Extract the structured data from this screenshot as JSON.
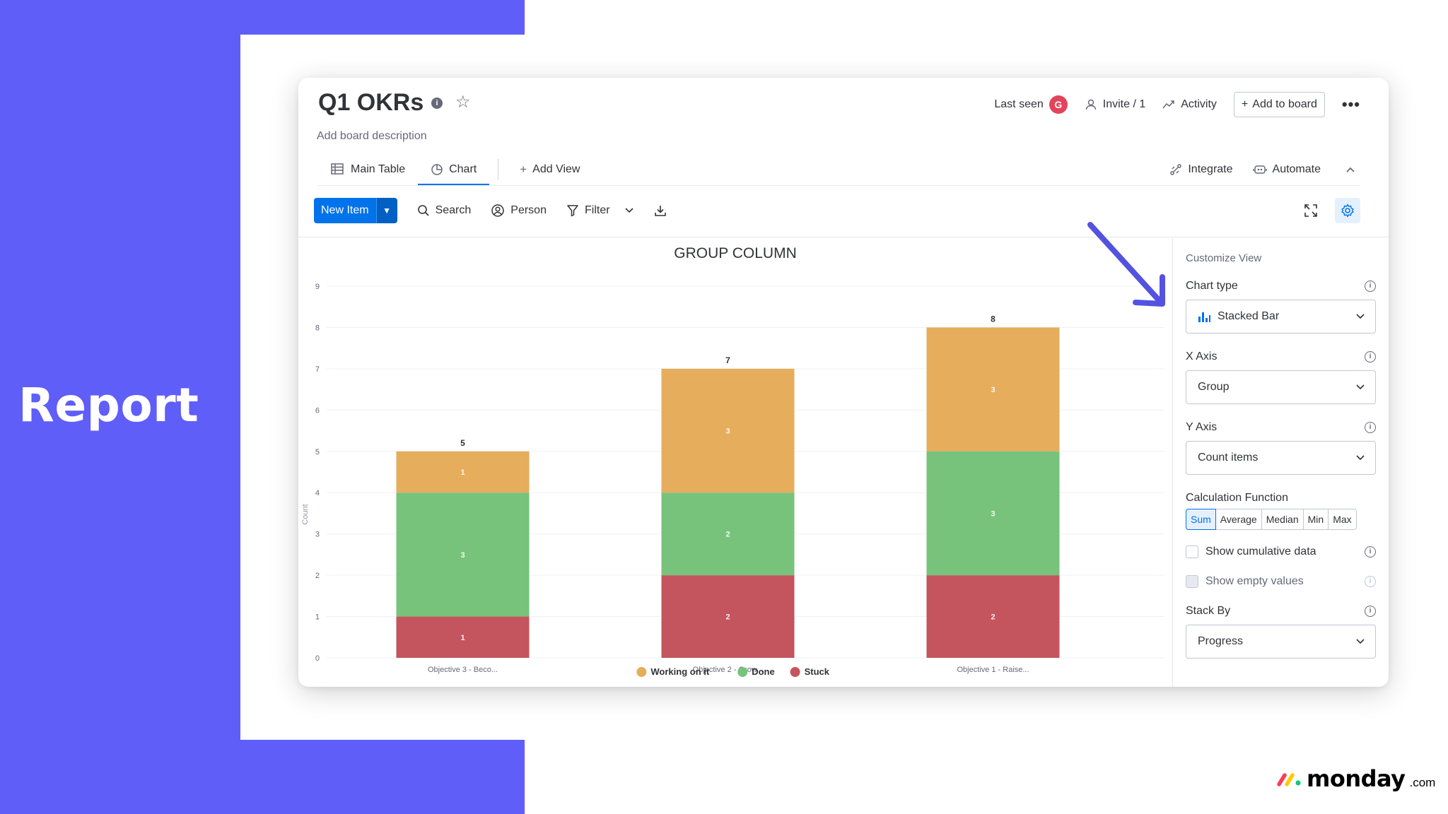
{
  "slide": {
    "label": "Report",
    "brand": "monday",
    "brand_suffix": ".com",
    "brand_colors": [
      "#ff3d57",
      "#ffcb00",
      "#00ca72"
    ]
  },
  "board": {
    "title": "Q1 OKRs",
    "description": "Add board description",
    "last_seen_label": "Last seen",
    "avatar_initial": "G",
    "invite_label": "Invite / 1",
    "activity_label": "Activity",
    "add_to_board_label": "Add to board"
  },
  "tabs": [
    {
      "label": "Main Table",
      "icon": "table-icon",
      "active": false
    },
    {
      "label": "Chart",
      "icon": "pie-chart-icon",
      "active": true
    },
    {
      "label": "Add View",
      "icon": "plus-icon",
      "active": false
    }
  ],
  "tabs_right": {
    "integrate_label": "Integrate",
    "automate_label": "Automate"
  },
  "toolbar": {
    "new_item_label": "New Item",
    "search_label": "Search",
    "person_label": "Person",
    "filter_label": "Filter"
  },
  "chart_data": {
    "type": "bar",
    "stacked": true,
    "title": "GROUP COLUMN",
    "ylabel": "Count",
    "ylim": [
      0,
      9
    ],
    "yticks": [
      0,
      1,
      2,
      3,
      4,
      5,
      6,
      7,
      8,
      9
    ],
    "categories": [
      "Objective 3 - Beco...",
      "Objective 2 - Grow...",
      "Objective 1 - Raise..."
    ],
    "series": [
      {
        "name": "Stuck",
        "color": "#c4545d",
        "values": [
          1,
          2,
          2
        ]
      },
      {
        "name": "Done",
        "color": "#77c37c",
        "values": [
          3,
          2,
          3
        ]
      },
      {
        "name": "Working on it",
        "color": "#e6ad5c",
        "values": [
          1,
          3,
          3
        ]
      }
    ],
    "totals": [
      5,
      7,
      8
    ],
    "legend": [
      "Working on it",
      "Done",
      "Stuck"
    ],
    "legend_position": "bottom",
    "grid": true
  },
  "customize": {
    "title": "Customize View",
    "chart_type_label": "Chart type",
    "chart_type_value": "Stacked Bar",
    "x_axis_label": "X Axis",
    "x_axis_value": "Group",
    "y_axis_label": "Y Axis",
    "y_axis_value": "Count items",
    "calc_label": "Calculation Function",
    "calc_options": [
      "Sum",
      "Average",
      "Median",
      "Min",
      "Max"
    ],
    "calc_selected": "Sum",
    "cumulative_label": "Show cumulative data",
    "empty_values_label": "Show empty values",
    "stack_by_label": "Stack By",
    "stack_by_value": "Progress"
  },
  "colors": {
    "accent": "#5f5ef9",
    "primary": "#0073ea",
    "arrow": "#5452e0"
  }
}
